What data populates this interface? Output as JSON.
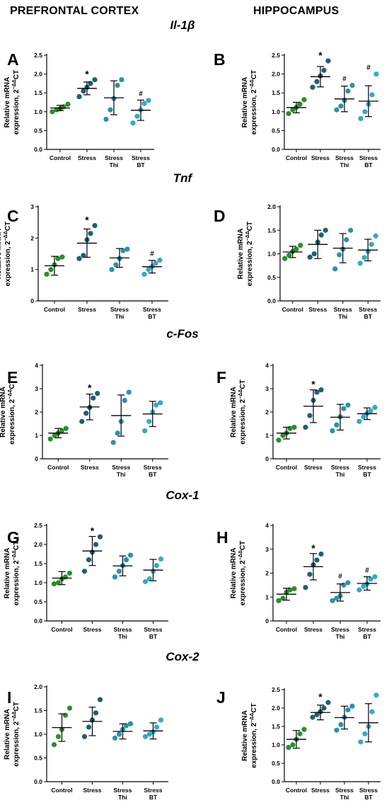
{
  "headers": {
    "left": "PREFRONTAL CORTEX",
    "right": "HIPPOCAMPUS"
  },
  "genes": [
    "Il-1β",
    "Tnf",
    "c-Fos",
    "Cox-1",
    "Cox-2"
  ],
  "y_axis_label": {
    "line1": "Relative mRNA",
    "line2_prefix": "expression, 2",
    "superscript": "−ΔΔ",
    "suffix": "CT"
  },
  "groups": [
    {
      "line1": "Control",
      "line2": ""
    },
    {
      "line1": "Stress",
      "line2": ""
    },
    {
      "line1": "Stress",
      "line2": "Thi"
    },
    {
      "line1": "Stress",
      "line2": "BT"
    }
  ],
  "colors": {
    "Control": "#2e8b2e",
    "Stress": "#1f5f72",
    "Stress Thi": "#2f8fa8",
    "Stress BT": "#3aa7c4"
  },
  "chart_data": [
    {
      "panel": "A",
      "gene": "Il-1β",
      "region": "PREFRONTAL CORTEX",
      "type": "scatter",
      "ylim": [
        0,
        2.5
      ],
      "yticks": [
        "0.0",
        "0.5",
        "1.0",
        "1.5",
        "2.0",
        "2.5"
      ],
      "groups": [
        {
          "name": "Control",
          "points": [
            1.0,
            1.05,
            1.08,
            1.13,
            1.2
          ],
          "mean": 1.1,
          "sd": 0.07,
          "mark": ""
        },
        {
          "name": "Stress",
          "points": [
            1.4,
            1.55,
            1.65,
            1.75,
            1.85
          ],
          "mean": 1.62,
          "sd": 0.17,
          "mark": "*"
        },
        {
          "name": "Stress Thi",
          "points": [
            0.8,
            1.05,
            1.35,
            1.7,
            1.85
          ],
          "mean": 1.37,
          "sd": 0.45,
          "mark": ""
        },
        {
          "name": "Stress BT",
          "points": [
            0.7,
            0.88,
            1.05,
            1.22,
            1.3
          ],
          "mean": 1.04,
          "sd": 0.27,
          "mark": "#"
        }
      ]
    },
    {
      "panel": "B",
      "gene": "Il-1β",
      "region": "HIPPOCAMPUS",
      "type": "scatter",
      "ylim": [
        0,
        2.5
      ],
      "yticks": [
        "0.0",
        "0.5",
        "1.0",
        "1.5",
        "2.0",
        "2.5"
      ],
      "groups": [
        {
          "name": "Control",
          "points": [
            0.95,
            1.05,
            1.12,
            1.2,
            1.32
          ],
          "mean": 1.11,
          "sd": 0.14,
          "mark": ""
        },
        {
          "name": "Stress",
          "points": [
            1.65,
            1.8,
            1.95,
            2.1,
            2.35
          ],
          "mean": 1.93,
          "sd": 0.27,
          "mark": "*"
        },
        {
          "name": "Stress Thi",
          "points": [
            1.05,
            1.15,
            1.3,
            1.55,
            1.7
          ],
          "mean": 1.34,
          "sd": 0.34,
          "mark": "#"
        },
        {
          "name": "Stress BT",
          "points": [
            0.82,
            1.0,
            1.2,
            1.45,
            2.0
          ],
          "mean": 1.28,
          "sd": 0.41,
          "mark": "#"
        }
      ]
    },
    {
      "panel": "C",
      "gene": "Tnf",
      "region": "PREFRONTAL CORTEX",
      "type": "scatter",
      "ylim": [
        0,
        3
      ],
      "yticks": [
        "0",
        "1",
        "2",
        "3"
      ],
      "groups": [
        {
          "name": "Control",
          "points": [
            0.85,
            1.0,
            1.15,
            1.35,
            1.4
          ],
          "mean": 1.12,
          "sd": 0.3,
          "mark": ""
        },
        {
          "name": "Stress",
          "points": [
            1.35,
            1.45,
            1.95,
            2.15,
            2.4
          ],
          "mean": 1.84,
          "sd": 0.45,
          "mark": "*"
        },
        {
          "name": "Stress Thi",
          "points": [
            1.0,
            1.15,
            1.35,
            1.6,
            1.65
          ],
          "mean": 1.37,
          "sd": 0.3,
          "mark": ""
        },
        {
          "name": "Stress BT",
          "points": [
            0.85,
            1.0,
            1.1,
            1.2,
            1.3
          ],
          "mean": 1.09,
          "sd": 0.2,
          "mark": "#"
        }
      ]
    },
    {
      "panel": "D",
      "gene": "Tnf",
      "region": "HIPPOCAMPUS",
      "type": "scatter",
      "ylim": [
        0,
        2.0
      ],
      "yticks": [
        "0.0",
        "0.5",
        "1.0",
        "1.5",
        "2.0"
      ],
      "groups": [
        {
          "name": "Control",
          "points": [
            0.9,
            0.97,
            1.05,
            1.1,
            1.18
          ],
          "mean": 1.04,
          "sd": 0.12,
          "mark": ""
        },
        {
          "name": "Stress",
          "points": [
            0.93,
            1.0,
            1.25,
            1.4,
            1.5
          ],
          "mean": 1.2,
          "sd": 0.3,
          "mark": ""
        },
        {
          "name": "Stress Thi",
          "points": [
            0.68,
            0.98,
            1.1,
            1.3,
            1.5
          ],
          "mean": 1.12,
          "sd": 0.31,
          "mark": ""
        },
        {
          "name": "Stress BT",
          "points": [
            0.8,
            0.92,
            1.05,
            1.2,
            1.38
          ],
          "mean": 1.08,
          "sd": 0.23,
          "mark": ""
        }
      ]
    },
    {
      "panel": "E",
      "gene": "c-Fos",
      "region": "PREFRONTAL CORTEX",
      "type": "scatter",
      "ylim": [
        0,
        4
      ],
      "yticks": [
        "0",
        "1",
        "2",
        "3",
        "4"
      ],
      "groups": [
        {
          "name": "Control",
          "points": [
            0.85,
            1.0,
            1.1,
            1.2,
            1.3
          ],
          "mean": 1.1,
          "sd": 0.2,
          "mark": ""
        },
        {
          "name": "Stress",
          "points": [
            1.6,
            1.95,
            2.2,
            2.6,
            2.8
          ],
          "mean": 2.22,
          "sd": 0.55,
          "mark": "*"
        },
        {
          "name": "Stress Thi",
          "points": [
            0.7,
            1.1,
            1.6,
            2.5,
            2.85
          ],
          "mean": 1.85,
          "sd": 0.88,
          "mark": ""
        },
        {
          "name": "Stress BT",
          "points": [
            1.2,
            1.6,
            2.0,
            2.3,
            2.4
          ],
          "mean": 1.92,
          "sd": 0.54,
          "mark": ""
        }
      ]
    },
    {
      "panel": "F",
      "gene": "c-Fos",
      "region": "HIPPOCAMPUS",
      "type": "scatter",
      "ylim": [
        0,
        4
      ],
      "yticks": [
        "0",
        "1",
        "2",
        "3",
        "4"
      ],
      "groups": [
        {
          "name": "Control",
          "points": [
            0.8,
            1.0,
            1.1,
            1.3,
            1.35
          ],
          "mean": 1.1,
          "sd": 0.25,
          "mark": ""
        },
        {
          "name": "Stress",
          "points": [
            1.35,
            1.85,
            2.5,
            2.85,
            2.95
          ],
          "mean": 2.25,
          "sd": 0.7,
          "mark": "*"
        },
        {
          "name": "Stress Thi",
          "points": [
            1.2,
            1.45,
            1.8,
            2.15,
            2.3
          ],
          "mean": 1.78,
          "sd": 0.55,
          "mark": ""
        },
        {
          "name": "Stress BT",
          "points": [
            1.6,
            1.8,
            1.95,
            2.05,
            2.2
          ],
          "mean": 1.93,
          "sd": 0.25,
          "mark": ""
        }
      ]
    },
    {
      "panel": "G",
      "gene": "Cox-1",
      "region": "PREFRONTAL CORTEX",
      "type": "scatter",
      "ylim": [
        0,
        2.5
      ],
      "yticks": [
        "0.0",
        "0.5",
        "1.0",
        "1.5",
        "2.0",
        "2.5"
      ],
      "groups": [
        {
          "name": "Control",
          "points": [
            0.97,
            1.0,
            1.1,
            1.15,
            1.25
          ],
          "mean": 1.12,
          "sd": 0.17,
          "mark": ""
        },
        {
          "name": "Stress",
          "points": [
            1.3,
            1.6,
            1.8,
            2.0,
            2.2
          ],
          "mean": 1.83,
          "sd": 0.38,
          "mark": "*"
        },
        {
          "name": "Stress Thi",
          "points": [
            1.15,
            1.3,
            1.45,
            1.6,
            1.72
          ],
          "mean": 1.44,
          "sd": 0.26,
          "mark": ""
        },
        {
          "name": "Stress BT",
          "points": [
            1.03,
            1.1,
            1.3,
            1.45,
            1.62
          ],
          "mean": 1.33,
          "sd": 0.28,
          "mark": ""
        }
      ]
    },
    {
      "panel": "H",
      "gene": "Cox-1",
      "region": "HIPPOCAMPUS",
      "type": "scatter",
      "ylim": [
        0,
        4
      ],
      "yticks": [
        "0",
        "1",
        "2",
        "3",
        "4"
      ],
      "groups": [
        {
          "name": "Control",
          "points": [
            0.85,
            0.95,
            1.2,
            1.3,
            1.35
          ],
          "mean": 1.12,
          "sd": 0.25,
          "mark": ""
        },
        {
          "name": "Stress",
          "points": [
            1.4,
            1.95,
            2.35,
            2.55,
            2.8
          ],
          "mean": 2.27,
          "sd": 0.55,
          "mark": "*"
        },
        {
          "name": "Stress Thi",
          "points": [
            0.85,
            0.95,
            1.05,
            1.5,
            1.6
          ],
          "mean": 1.19,
          "sd": 0.36,
          "mark": "#"
        },
        {
          "name": "Stress BT",
          "points": [
            1.3,
            1.45,
            1.55,
            1.75,
            1.85
          ],
          "mean": 1.57,
          "sd": 0.28,
          "mark": "#"
        }
      ]
    },
    {
      "panel": "I",
      "gene": "Cox-2",
      "region": "PREFRONTAL CORTEX",
      "type": "scatter",
      "ylim": [
        0,
        2.0
      ],
      "yticks": [
        "0.0",
        "0.5",
        "1.0",
        "1.5",
        "2.0"
      ],
      "groups": [
        {
          "name": "Control",
          "points": [
            0.78,
            0.95,
            1.1,
            1.4,
            1.55
          ],
          "mean": 1.14,
          "sd": 0.29,
          "mark": ""
        },
        {
          "name": "Stress",
          "points": [
            0.95,
            1.15,
            1.3,
            1.45,
            1.73
          ],
          "mean": 1.27,
          "sd": 0.3,
          "mark": ""
        },
        {
          "name": "Stress Thi",
          "points": [
            0.92,
            1.0,
            1.1,
            1.18,
            1.22
          ],
          "mean": 1.06,
          "sd": 0.16,
          "mark": ""
        },
        {
          "name": "Stress BT",
          "points": [
            0.95,
            1.0,
            1.05,
            1.15,
            1.3
          ],
          "mean": 1.07,
          "sd": 0.17,
          "mark": ""
        }
      ]
    },
    {
      "panel": "J",
      "gene": "Cox-2",
      "region": "HIPPOCAMPUS",
      "type": "scatter",
      "ylim": [
        0,
        2.5
      ],
      "yticks": [
        "0.0",
        "0.5",
        "1.0",
        "1.5",
        "2.0",
        "2.5"
      ],
      "groups": [
        {
          "name": "Control",
          "points": [
            0.93,
            1.0,
            1.15,
            1.3,
            1.42
          ],
          "mean": 1.15,
          "sd": 0.24,
          "mark": ""
        },
        {
          "name": "Stress",
          "points": [
            1.75,
            1.82,
            1.9,
            2.0,
            2.15
          ],
          "mean": 1.88,
          "sd": 0.2,
          "mark": "*"
        },
        {
          "name": "Stress Thi",
          "points": [
            1.4,
            1.55,
            1.75,
            1.95,
            2.05
          ],
          "mean": 1.74,
          "sd": 0.31,
          "mark": ""
        },
        {
          "name": "Stress BT",
          "points": [
            1.08,
            1.3,
            1.5,
            1.9,
            2.35
          ],
          "mean": 1.6,
          "sd": 0.52,
          "mark": ""
        }
      ]
    }
  ]
}
